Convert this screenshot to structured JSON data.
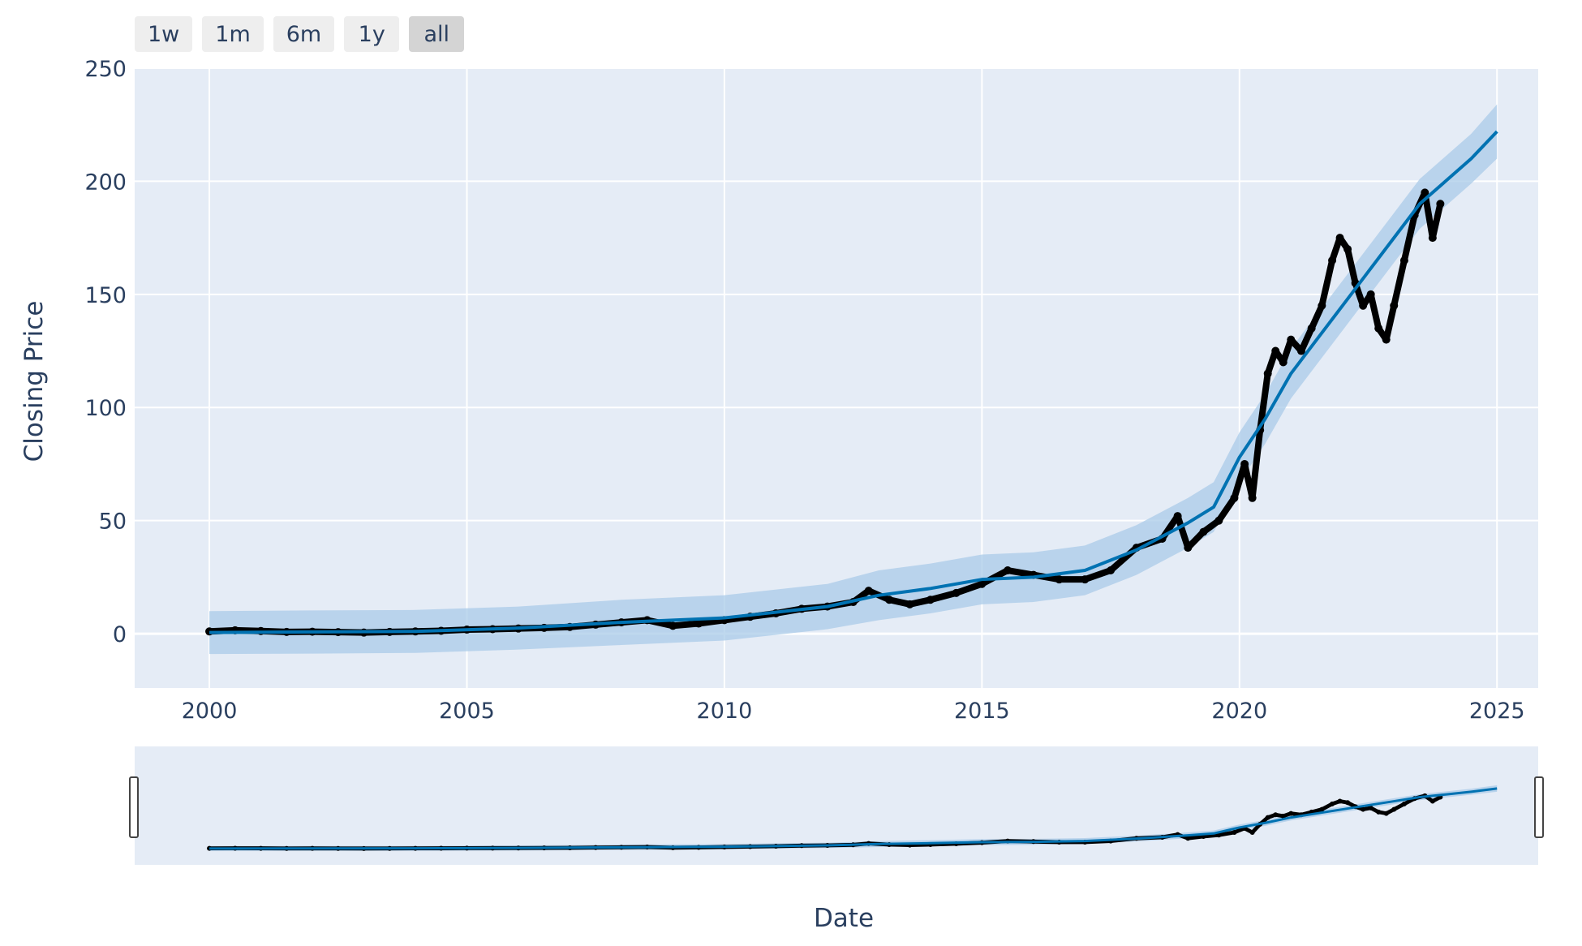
{
  "range_selector": {
    "buttons": [
      {
        "label": "1w",
        "active": false
      },
      {
        "label": "1m",
        "active": false
      },
      {
        "label": "6m",
        "active": false
      },
      {
        "label": "1y",
        "active": false
      },
      {
        "label": "all",
        "active": true
      }
    ]
  },
  "colors": {
    "plot_background": "#e5ecf6",
    "grid": "#ffffff",
    "actual_points": "#000000",
    "forecast_line": "#0072b2",
    "uncertainty_band": "#a9cbe8",
    "text": "#2a3f5f"
  },
  "chart_data": {
    "type": "scatter",
    "title": "",
    "xlabel": "Date",
    "ylabel": "Closing Price",
    "xlim": [
      1998.55,
      2025.8
    ],
    "ylim": [
      -24,
      250
    ],
    "x_ticks": [
      2000,
      2005,
      2010,
      2015,
      2020,
      2025
    ],
    "x_tick_labels": [
      "2000",
      "2005",
      "2010",
      "2015",
      "2020",
      "2025"
    ],
    "y_ticks": [
      0,
      50,
      100,
      150,
      200,
      250
    ],
    "y_tick_labels": [
      "0",
      "50",
      "100",
      "150",
      "200",
      "250"
    ],
    "grid": true,
    "rangeslider": true,
    "series": [
      {
        "role": "actual",
        "mode": "markers",
        "x": [
          2000.0,
          2000.5,
          2001.0,
          2001.5,
          2002.0,
          2002.5,
          2003.0,
          2003.5,
          2004.0,
          2004.5,
          2005.0,
          2005.5,
          2006.0,
          2006.5,
          2007.0,
          2007.5,
          2008.0,
          2008.5,
          2009.0,
          2009.5,
          2010.0,
          2010.5,
          2011.0,
          2011.5,
          2012.0,
          2012.5,
          2012.8,
          2013.2,
          2013.6,
          2014.0,
          2014.5,
          2015.0,
          2015.5,
          2016.0,
          2016.5,
          2017.0,
          2017.5,
          2018.0,
          2018.5,
          2018.8,
          2019.0,
          2019.3,
          2019.6,
          2019.9,
          2020.1,
          2020.25,
          2020.4,
          2020.55,
          2020.7,
          2020.85,
          2021.0,
          2021.2,
          2021.4,
          2021.6,
          2021.8,
          2021.95,
          2022.1,
          2022.25,
          2022.4,
          2022.55,
          2022.7,
          2022.85,
          2023.0,
          2023.2,
          2023.4,
          2023.6,
          2023.75,
          2023.9
        ],
        "y": [
          1,
          1.5,
          1.2,
          0.8,
          0.9,
          0.7,
          0.5,
          0.8,
          1.0,
          1.3,
          1.8,
          2.0,
          2.3,
          2.6,
          3.0,
          4.0,
          5.0,
          6.0,
          3.5,
          4.5,
          6.0,
          7.5,
          9.0,
          11.0,
          12.0,
          14.0,
          19.0,
          15.0,
          13.0,
          15.0,
          18.0,
          22.0,
          28.0,
          26.0,
          24.0,
          24.0,
          28.0,
          38.0,
          42.0,
          52.0,
          38.0,
          45.0,
          50.0,
          60.0,
          75.0,
          60.0,
          90.0,
          115.0,
          125.0,
          120.0,
          130.0,
          125.0,
          135.0,
          145.0,
          165.0,
          175.0,
          170.0,
          155.0,
          145.0,
          150.0,
          135.0,
          130.0,
          145.0,
          165.0,
          185.0,
          195.0,
          175.0,
          190.0
        ]
      },
      {
        "role": "forecast",
        "mode": "lines",
        "x": [
          2000,
          2002,
          2004,
          2006,
          2008,
          2010,
          2012,
          2013,
          2014,
          2015,
          2016,
          2017,
          2018,
          2019,
          2019.5,
          2020,
          2020.5,
          2021,
          2021.5,
          2022,
          2022.5,
          2023,
          2023.5,
          2024,
          2024.5,
          2025
        ],
        "y": [
          0.5,
          0.8,
          1,
          2.5,
          5,
          7,
          12,
          17,
          20,
          24,
          25,
          28,
          37,
          49,
          56,
          78,
          95,
          115,
          130,
          145,
          160,
          175,
          190,
          200,
          210,
          222
        ],
        "lower": [
          -9,
          -8.8,
          -8.5,
          -7,
          -5,
          -3,
          2,
          6,
          9,
          13,
          14,
          17,
          26,
          38,
          45,
          67,
          84,
          104,
          119,
          134,
          149,
          164,
          179,
          189,
          199,
          210
        ],
        "upper": [
          10,
          10.3,
          10.5,
          12,
          15,
          17,
          22,
          28,
          31,
          35,
          36,
          39,
          48,
          60,
          67,
          89,
          106,
          126,
          141,
          156,
          171,
          186,
          201,
          211,
          221,
          234
        ]
      }
    ]
  },
  "axis_title_x": "Date",
  "axis_title_y": "Closing Price"
}
